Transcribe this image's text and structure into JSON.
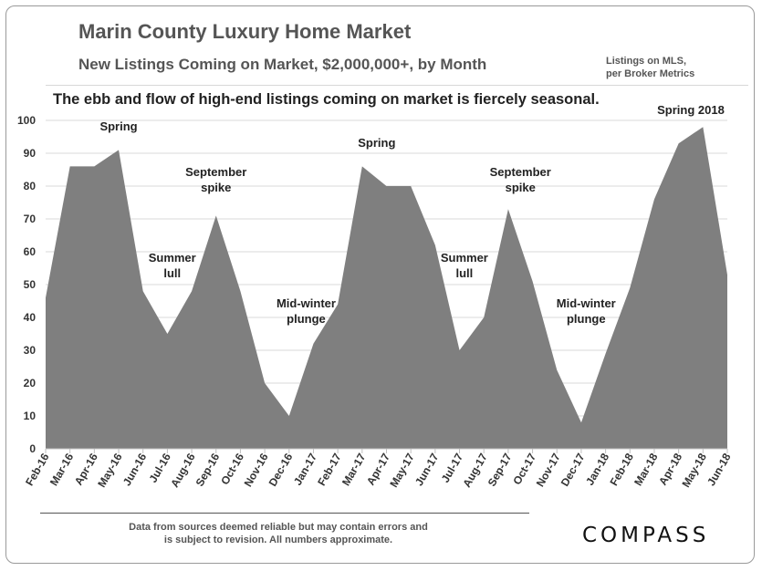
{
  "header": {
    "title": "Marin County Luxury Home Market",
    "subtitle": "New Listings Coming on Market, $2,000,000+, by Month",
    "source_note_line1": "Listings on MLS,",
    "source_note_line2": "per Broker Metrics",
    "headline": "The ebb and flow of high-end listings coming on market is fiercely seasonal."
  },
  "footer": {
    "note_line1": "Data from  sources  deemed reliable but may contain errors and",
    "note_line2": "is subject to revision. All numbers approximate.",
    "logo": "COMPASS"
  },
  "colors": {
    "area_fill": "#7f7f7f",
    "grid": "#d9d9d9",
    "text": "#333333"
  },
  "chart_data": {
    "type": "area",
    "title": "Marin County Luxury Home Market",
    "subtitle": "New Listings Coming on Market, $2,000,000+, by Month",
    "xlabel": "",
    "ylabel": "",
    "ylim": [
      0,
      100
    ],
    "yticks": [
      0,
      10,
      20,
      30,
      40,
      50,
      60,
      70,
      80,
      90,
      100
    ],
    "grid": true,
    "legend": "none",
    "categories": [
      "Feb-16",
      "Mar-16",
      "Apr-16",
      "May-16",
      "Jun-16",
      "Jul-16",
      "Aug-16",
      "Sep-16",
      "Oct-16",
      "Nov-16",
      "Dec-16",
      "Jan-17",
      "Feb-17",
      "Mar-17",
      "Apr-17",
      "May-17",
      "Jun-17",
      "Jul-17",
      "Aug-17",
      "Sep-17",
      "Oct-17",
      "Nov-17",
      "Dec-17",
      "Jan-18",
      "Feb-18",
      "Mar-18",
      "Apr-18",
      "May-18",
      "Jun-18"
    ],
    "series": [
      {
        "values": [
          46,
          86,
          86,
          91,
          48,
          35,
          48,
          71,
          48,
          20,
          10,
          32,
          44,
          86,
          80,
          80,
          62,
          30,
          40,
          73,
          51,
          24,
          8,
          29,
          49,
          76,
          93,
          98,
          53
        ]
      }
    ],
    "annotations": [
      {
        "text_lines": [
          "Spring"
        ],
        "x": 3,
        "y": 97
      },
      {
        "text_lines": [
          "Summer",
          "lull"
        ],
        "x": 5.2,
        "y": 57
      },
      {
        "text_lines": [
          "September",
          "spike"
        ],
        "x": 7,
        "y": 83
      },
      {
        "text_lines": [
          "Mid-winter",
          "plunge"
        ],
        "x": 10.7,
        "y": 43
      },
      {
        "text_lines": [
          "Spring"
        ],
        "x": 13.6,
        "y": 92
      },
      {
        "text_lines": [
          "Summer",
          "lull"
        ],
        "x": 17.2,
        "y": 57
      },
      {
        "text_lines": [
          "September",
          "spike"
        ],
        "x": 19.5,
        "y": 83
      },
      {
        "text_lines": [
          "Mid-winter",
          "plunge"
        ],
        "x": 22.2,
        "y": 43
      },
      {
        "text_lines": [
          "Spring 2018"
        ],
        "x": 26.5,
        "y": 102
      }
    ]
  }
}
